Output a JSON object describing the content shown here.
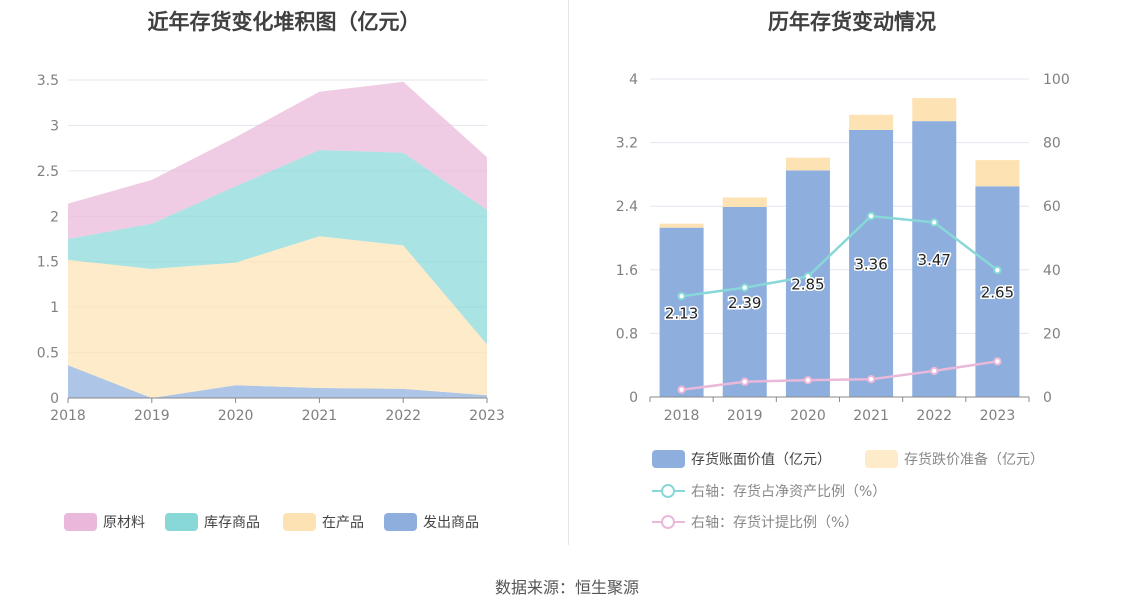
{
  "source_text": "数据来源：恒生聚源",
  "chart_data": [
    {
      "type": "area",
      "title": "近年存货变化堆积图（亿元）",
      "x": [
        "2018",
        "2019",
        "2020",
        "2021",
        "2022",
        "2023"
      ],
      "ylim": [
        0,
        3.5
      ],
      "yticks": [
        "0",
        "0.5",
        "1",
        "1.5",
        "2",
        "2.5",
        "3",
        "3.5"
      ],
      "stacked": true,
      "series": [
        {
          "name": "发出商品",
          "color": "#8eaedd",
          "values": [
            0.36,
            0.0,
            0.14,
            0.11,
            0.1,
            0.03
          ]
        },
        {
          "name": "在产品",
          "color": "#fde3b4",
          "values": [
            1.16,
            1.42,
            1.35,
            1.67,
            1.58,
            0.56
          ]
        },
        {
          "name": "库存商品",
          "color": "#88d8d8",
          "values": [
            0.23,
            0.5,
            0.84,
            0.95,
            1.02,
            1.48
          ]
        },
        {
          "name": "原材料",
          "color": "#eab8da",
          "values": [
            0.39,
            0.48,
            0.54,
            0.64,
            0.78,
            0.58
          ]
        }
      ],
      "legend_order": [
        "原材料",
        "库存商品",
        "在产品",
        "发出商品"
      ],
      "legend_position": "bottom"
    },
    {
      "type": "bar",
      "title": "历年存货变动情况",
      "categories": [
        "2018",
        "2019",
        "2020",
        "2021",
        "2022",
        "2023"
      ],
      "ylim": [
        0,
        4
      ],
      "yticks": [
        "0",
        "0.8",
        "1.6",
        "2.4",
        "3.2",
        "4"
      ],
      "y2lim": [
        0,
        100
      ],
      "y2ticks": [
        "0",
        "20",
        "40",
        "60",
        "80",
        "100"
      ],
      "series": [
        {
          "name": "存货账面价值（亿元）",
          "kind": "bar",
          "stack": "a",
          "color": "#8eaedd",
          "values": [
            2.13,
            2.39,
            2.85,
            3.36,
            3.47,
            2.65
          ],
          "labels": [
            "2.13",
            "2.39",
            "2.85",
            "3.36",
            "3.47",
            "2.65"
          ]
        },
        {
          "name": "存货跌价准备（亿元）",
          "kind": "bar",
          "stack": "a",
          "color": "#fde3b4",
          "values": [
            0.05,
            0.12,
            0.16,
            0.19,
            0.29,
            0.33
          ]
        },
        {
          "name": "右轴：存货占净资产比例（%）",
          "kind": "line",
          "axis": "right",
          "color": "#88d8d8",
          "values": [
            31.7,
            34.4,
            37.9,
            56.9,
            54.9,
            39.9
          ]
        },
        {
          "name": "右轴：存货计提比例（%）",
          "kind": "line",
          "axis": "right",
          "color": "#eab8da",
          "values": [
            2.3,
            4.8,
            5.3,
            5.6,
            8.2,
            11.2
          ]
        }
      ],
      "legend_position": "bottom"
    }
  ]
}
